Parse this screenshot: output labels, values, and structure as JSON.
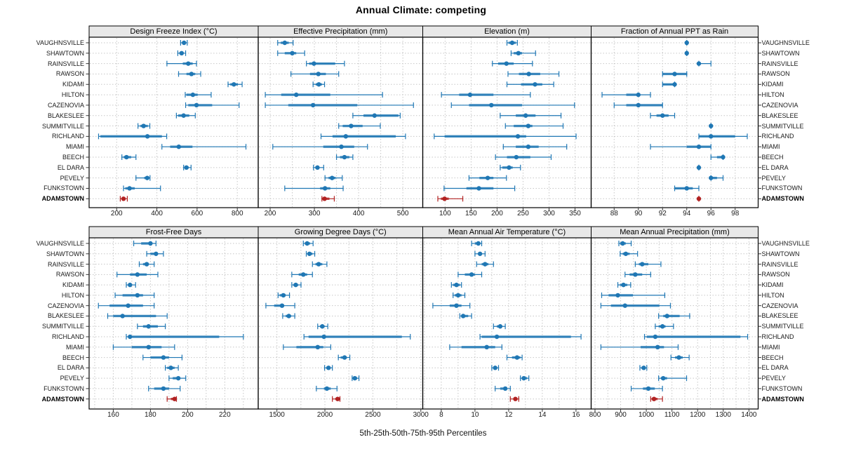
{
  "title": "Annual Climate: competing",
  "xlabel": "5th-25th-50th-75th-95th Percentiles",
  "percentile_labels": [
    "5th",
    "25th",
    "50th",
    "75th",
    "95th"
  ],
  "locations": [
    "VAUGHNSVILLE",
    "SHAWTOWN",
    "RAINSVILLE",
    "RAWSON",
    "KIDAMI",
    "HILTON",
    "CAZENOVIA",
    "BLAKESLEE",
    "SUMMITVILLE",
    "RICHLAND",
    "MIAMI",
    "BEECH",
    "EL DARA",
    "PEVELY",
    "FUNKSTOWN",
    "ADAMSTOWN"
  ],
  "highlight_location": "ADAMSTOWN",
  "colors": {
    "series": "#1f77b4",
    "highlight": "#b22222",
    "grid": "#c6c6c6",
    "strip_bg": "#e8e8e8",
    "border": "#000000",
    "tick": "#333333"
  },
  "chart_data": [
    {
      "type": "dotplot-percentiles",
      "title": "Design Freeze Index (°C)",
      "row": 0,
      "col": 0,
      "tick_values": [
        200,
        400,
        600,
        800
      ],
      "tick_labels": [
        "200",
        "400",
        "600",
        "800"
      ],
      "range": [
        63,
        904
      ],
      "grid_step": 200,
      "values": [
        [
          518,
          526,
          535,
          543,
          551
        ],
        [
          504,
          512,
          523,
          533,
          543
        ],
        [
          450,
          529,
          556,
          578,
          597
        ],
        [
          508,
          547,
          572,
          591,
          618
        ],
        [
          754,
          765,
          783,
          803,
          824
        ],
        [
          541,
          547,
          579,
          603,
          670
        ],
        [
          543,
          556,
          597,
          675,
          809
        ],
        [
          497,
          506,
          533,
          561,
          591
        ],
        [
          306,
          318,
          334,
          355,
          365
        ],
        [
          110,
          119,
          353,
          425,
          449
        ],
        [
          425,
          466,
          509,
          577,
          843
        ],
        [
          226,
          235,
          249,
          272,
          296
        ],
        [
          533,
          538,
          547,
          558,
          570
        ],
        [
          296,
          337,
          352,
          362,
          366
        ],
        [
          234,
          243,
          264,
          290,
          418
        ],
        [
          218,
          225,
          234,
          243,
          253
        ]
      ]
    },
    {
      "type": "dotplot-percentiles",
      "title": "Effective Precipitation (mm)",
      "row": 0,
      "col": 1,
      "tick_values": [
        200,
        300,
        400,
        500
      ],
      "tick_labels": [
        "200",
        "300",
        "400",
        "500"
      ],
      "range": [
        173,
        545
      ],
      "grid_step": 50,
      "values": [
        [
          217,
          224,
          233,
          242,
          252
        ],
        [
          217,
          233,
          250,
          259,
          278
        ],
        [
          282,
          288,
          299,
          347,
          368
        ],
        [
          247,
          290,
          309,
          326,
          355
        ],
        [
          297,
          303,
          310,
          317,
          323
        ],
        [
          189,
          225,
          259,
          336,
          454
        ],
        [
          189,
          241,
          297,
          397,
          524
        ],
        [
          387,
          411,
          436,
          490,
          494
        ],
        [
          355,
          364,
          383,
          409,
          449
        ],
        [
          315,
          341,
          371,
          484,
          506
        ],
        [
          206,
          320,
          361,
          390,
          420
        ],
        [
          350,
          358,
          368,
          379,
          387
        ],
        [
          298,
          302,
          307,
          311,
          321
        ],
        [
          324,
          332,
          340,
          348,
          363
        ],
        [
          233,
          313,
          324,
          336,
          365
        ],
        [
          317,
          318,
          323,
          334,
          345
        ]
      ]
    },
    {
      "type": "dotplot-percentiles",
      "title": "Elevation (m)",
      "row": 0,
      "col": 2,
      "tick_values": [
        100,
        150,
        200,
        250,
        300,
        350
      ],
      "tick_labels": [
        "100",
        "150",
        "200",
        "250",
        "300",
        "350"
      ],
      "range": [
        57,
        381
      ],
      "grid_step": 50,
      "values": [
        [
          219,
          222,
          229,
          236,
          239
        ],
        [
          227,
          232,
          241,
          248,
          274
        ],
        [
          191,
          202,
          218,
          232,
          268
        ],
        [
          221,
          242,
          261,
          283,
          319
        ],
        [
          219,
          246,
          273,
          287,
          309
        ],
        [
          93,
          127,
          148,
          193,
          264
        ],
        [
          112,
          146,
          189,
          248,
          349
        ],
        [
          206,
          236,
          255,
          274,
          323
        ],
        [
          216,
          232,
          260,
          268,
          327
        ],
        [
          79,
          99,
          240,
          256,
          352
        ],
        [
          212,
          236,
          260,
          280,
          334
        ],
        [
          197,
          219,
          237,
          264,
          304
        ],
        [
          206,
          210,
          223,
          230,
          245
        ],
        [
          146,
          166,
          182,
          193,
          218
        ],
        [
          98,
          141,
          165,
          193,
          234
        ],
        [
          86,
          92,
          99,
          107,
          134
        ]
      ]
    },
    {
      "type": "dotplot-percentiles",
      "title": "Fraction of Annual PPT as Rain",
      "row": 0,
      "col": 3,
      "tick_values": [
        88,
        90,
        92,
        94,
        96,
        98
      ],
      "tick_labels": [
        "88",
        "90",
        "92",
        "94",
        "96",
        "98"
      ],
      "range": [
        86.1,
        99.9
      ],
      "grid_step": 2,
      "values": [
        [
          94,
          94,
          94,
          94,
          94
        ],
        [
          94,
          94,
          94,
          94,
          94
        ],
        [
          95,
          95,
          95,
          95,
          96
        ],
        [
          92,
          92,
          93,
          94,
          94
        ],
        [
          92,
          92,
          93,
          93,
          93
        ],
        [
          87,
          89,
          90,
          90,
          91
        ],
        [
          88,
          89,
          90,
          92,
          92
        ],
        [
          91,
          91.5,
          92,
          92.5,
          93
        ],
        [
          96,
          96,
          96,
          96,
          96
        ],
        [
          95,
          95,
          96,
          98,
          99
        ],
        [
          91,
          94,
          95,
          96,
          96
        ],
        [
          96,
          96.5,
          97,
          97,
          97
        ],
        [
          95,
          95,
          95,
          95,
          95
        ],
        [
          96,
          96,
          96,
          96.5,
          97
        ],
        [
          93,
          93,
          94,
          94.5,
          95
        ],
        [
          95,
          95,
          95,
          95,
          95
        ]
      ]
    },
    {
      "type": "dotplot-percentiles",
      "title": "Frost-Free Days",
      "row": 1,
      "col": 0,
      "tick_values": [
        160,
        180,
        200,
        220
      ],
      "tick_labels": [
        "160",
        "180",
        "200",
        "220"
      ],
      "range": [
        147,
        238
      ],
      "grid_step": 10,
      "values": [
        [
          171,
          175,
          180,
          181,
          183
        ],
        [
          178,
          180,
          183,
          184,
          187
        ],
        [
          174,
          176,
          178,
          179,
          182
        ],
        [
          162,
          169,
          173,
          178,
          184
        ],
        [
          167,
          168,
          169,
          170,
          172
        ],
        [
          161,
          165,
          173,
          176,
          182
        ],
        [
          152,
          158,
          168,
          176,
          182
        ],
        [
          157,
          160,
          165,
          183,
          189
        ],
        [
          173,
          176,
          179,
          184,
          188
        ],
        [
          167,
          169,
          169,
          217,
          230
        ],
        [
          160,
          170,
          179,
          186,
          193
        ],
        [
          176,
          180,
          187,
          190,
          197
        ],
        [
          188,
          189,
          191,
          193,
          195
        ],
        [
          190,
          192,
          195,
          196,
          199
        ],
        [
          179,
          182,
          187,
          190,
          196
        ],
        [
          189,
          191,
          193,
          194,
          194
        ]
      ]
    },
    {
      "type": "dotplot-percentiles",
      "title": "Growing Degree Days (°C)",
      "row": 1,
      "col": 1,
      "tick_values": [
        1500,
        2000,
        2500,
        3000
      ],
      "tick_labels": [
        "1500",
        "2000",
        "2500",
        "3000"
      ],
      "range": [
        1305,
        3020
      ],
      "grid_step": 250,
      "values": [
        [
          1775,
          1790,
          1815,
          1845,
          1877
        ],
        [
          1806,
          1823,
          1839,
          1870,
          1894
        ],
        [
          1870,
          1901,
          1935,
          1973,
          2021
        ],
        [
          1655,
          1727,
          1775,
          1815,
          1870
        ],
        [
          1655,
          1672,
          1696,
          1720,
          1751
        ],
        [
          1512,
          1529,
          1567,
          1591,
          1631
        ],
        [
          1385,
          1471,
          1553,
          1576,
          1686
        ],
        [
          1560,
          1591,
          1624,
          1648,
          1686
        ],
        [
          1925,
          1949,
          1973,
          1997,
          2030
        ],
        [
          1782,
          1830,
          1990,
          2802,
          2890
        ],
        [
          1567,
          1703,
          1925,
          1983,
          2061
        ],
        [
          2140,
          2164,
          2205,
          2229,
          2260
        ],
        [
          1997,
          2014,
          2038,
          2054,
          2078
        ],
        [
          2284,
          2293,
          2312,
          2336,
          2355
        ],
        [
          1911,
          1990,
          2021,
          2061,
          2126
        ],
        [
          2078,
          2109,
          2133,
          2150,
          2157
        ]
      ]
    },
    {
      "type": "dotplot-percentiles",
      "title": "Mean Annual Air Temperature (°C)",
      "row": 1,
      "col": 2,
      "tick_values": [
        8,
        10,
        12,
        14,
        16
      ],
      "tick_labels": [
        "8",
        "10",
        "12",
        "14",
        "16"
      ],
      "range": [
        6.9,
        16.9
      ],
      "grid_step": 1,
      "values": [
        [
          9.8,
          10.0,
          10.2,
          10.3,
          10.4
        ],
        [
          10.0,
          10.2,
          10.3,
          10.4,
          10.6
        ],
        [
          10.1,
          10.4,
          10.6,
          10.8,
          11.1
        ],
        [
          9.0,
          9.4,
          9.8,
          10.0,
          10.4
        ],
        [
          8.6,
          8.7,
          8.9,
          9.1,
          9.2
        ],
        [
          8.7,
          8.8,
          9.0,
          9.2,
          9.4
        ],
        [
          7.5,
          8.5,
          8.9,
          9.2,
          9.7
        ],
        [
          9.1,
          9.2,
          9.3,
          9.6,
          9.8
        ],
        [
          11.1,
          11.3,
          11.5,
          11.6,
          11.8
        ],
        [
          10.3,
          10.4,
          11.3,
          15.7,
          16.3
        ],
        [
          8.5,
          9.2,
          10.7,
          11.2,
          11.6
        ],
        [
          11.9,
          12.2,
          12.5,
          12.7,
          12.8
        ],
        [
          11.0,
          11.1,
          11.2,
          11.3,
          11.4
        ],
        [
          12.7,
          12.8,
          12.9,
          13.1,
          13.2
        ],
        [
          11.2,
          11.5,
          11.8,
          11.9,
          12.1
        ],
        [
          12.1,
          12.3,
          12.4,
          12.5,
          12.6
        ]
      ]
    },
    {
      "type": "dotplot-percentiles",
      "title": "Mean Annual Precipitation (mm)",
      "row": 1,
      "col": 3,
      "tick_values": [
        800,
        900,
        1000,
        1100,
        1200,
        1300,
        1400
      ],
      "tick_labels": [
        "800",
        "900",
        "1000",
        "1100",
        "1200",
        "1300",
        "1400"
      ],
      "range": [
        785,
        1436
      ],
      "grid_step": 50,
      "values": [
        [
          893,
          898,
          908,
          920,
          941
        ],
        [
          898,
          908,
          920,
          935,
          966
        ],
        [
          957,
          971,
          984,
          1008,
          1057
        ],
        [
          917,
          935,
          957,
          984,
          1017
        ],
        [
          889,
          898,
          911,
          926,
          939
        ],
        [
          826,
          853,
          889,
          948,
          1072
        ],
        [
          823,
          862,
          917,
          1051,
          1094
        ],
        [
          1048,
          1066,
          1081,
          1130,
          1169
        ],
        [
          1035,
          1048,
          1063,
          1075,
          1106
        ],
        [
          993,
          1002,
          1035,
          1367,
          1395
        ],
        [
          823,
          978,
          1044,
          1069,
          1124
        ],
        [
          1096,
          1112,
          1127,
          1142,
          1167
        ],
        [
          975,
          981,
          990,
          996,
          1002
        ],
        [
          1048,
          1057,
          1066,
          1081,
          1157
        ],
        [
          941,
          987,
          1008,
          1033,
          1063
        ],
        [
          1017,
          1021,
          1030,
          1044,
          1063
        ]
      ]
    }
  ]
}
